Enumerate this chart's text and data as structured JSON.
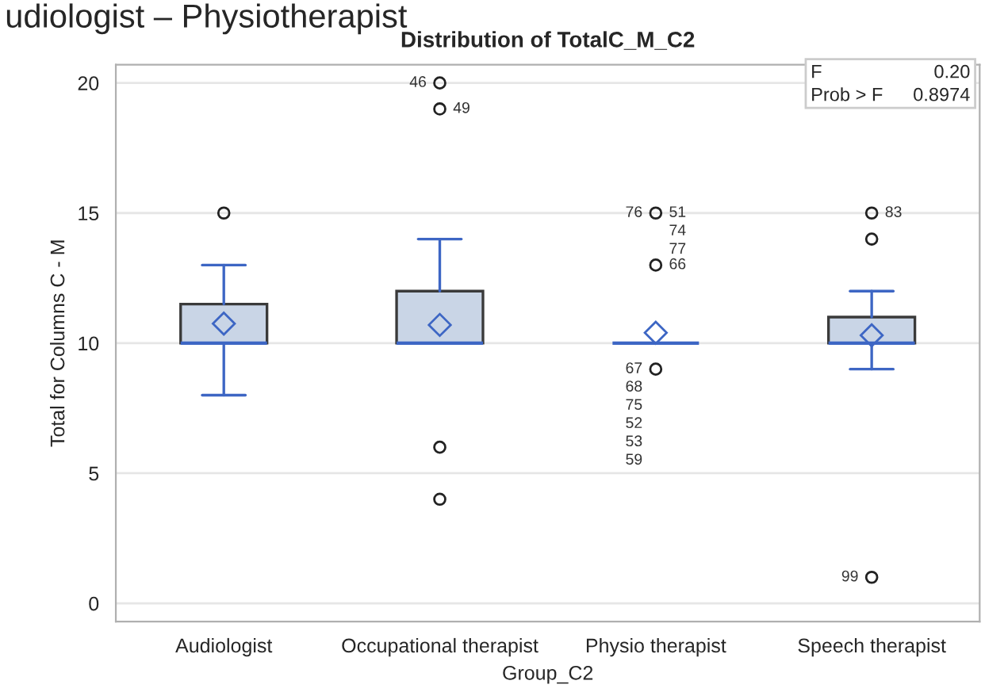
{
  "chart_data": {
    "type": "box",
    "title": "Distribution of TotalC_M_C2",
    "xlabel": "Group_C2",
    "ylabel": "Total for Columns C - M",
    "categories": [
      "Audiologist",
      "Occupational therapist",
      "Physio therapist",
      "Speech therapist"
    ],
    "series": [
      {
        "color": "#c9d5e6",
        "boxes": [
          {
            "low": 8,
            "q1": 10,
            "median": 10,
            "q3": 11.5,
            "high": 13,
            "mean": 10.75,
            "outliers": [
              15
            ]
          },
          {
            "low": 10,
            "q1": 10,
            "median": 10,
            "q3": 12,
            "high": 14,
            "mean": 10.7,
            "outliers": [
              20,
              19,
              6,
              4
            ]
          },
          {
            "low": 10,
            "q1": 10,
            "median": 10,
            "q3": 10,
            "high": 10,
            "mean": 10.4,
            "outliers": [
              15,
              13,
              9
            ]
          },
          {
            "low": 9,
            "q1": 10,
            "median": 10,
            "q3": 11,
            "high": 12,
            "mean": 10.3,
            "outliers": [
              15,
              14,
              1
            ]
          }
        ]
      }
    ],
    "ylim": [
      -0.7,
      20.7
    ],
    "yticks": [
      0,
      5,
      10,
      15,
      20
    ],
    "grid": "y",
    "marker": "diamond",
    "annotations": [
      "udiologist – Physiotherapist",
      "F",
      "0.20",
      "Prob > F",
      "0.8974",
      "46",
      "49",
      "76",
      "51",
      "74",
      "77",
      "66",
      "67",
      "68",
      "75",
      "52",
      "53",
      "59",
      "83",
      "99"
    ]
  }
}
